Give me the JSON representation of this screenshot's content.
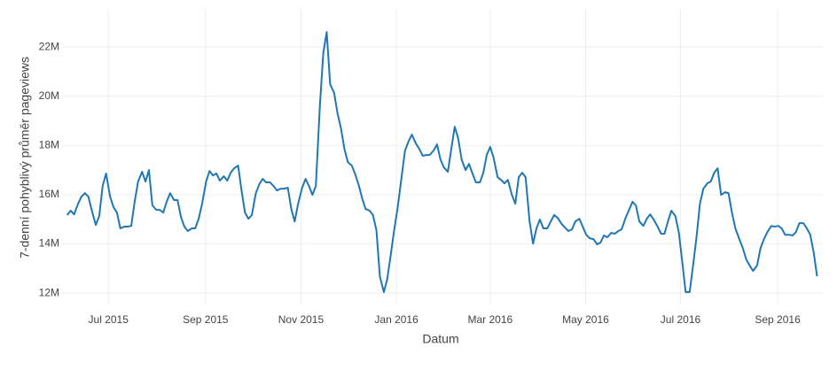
{
  "chart_data": {
    "type": "line",
    "x_label": "Datum",
    "y_label": "7-denní pohyblivý průměr pageviews",
    "color": "#1f77b4",
    "grid": true,
    "xlim": [
      2015.415,
      2016.746
    ],
    "xticks": [
      {
        "value": 2015.496,
        "label": "Jul 2015"
      },
      {
        "value": 2015.666,
        "label": "Sep 2015"
      },
      {
        "value": 2015.833,
        "label": "Nov 2015"
      },
      {
        "value": 2016,
        "label": "Jan 2016"
      },
      {
        "value": 2016.164,
        "label": "Mar 2016"
      },
      {
        "value": 2016.331,
        "label": "May 2016"
      },
      {
        "value": 2016.497,
        "label": "Jul 2016"
      },
      {
        "value": 2016.667,
        "label": "Sep 2016"
      }
    ],
    "ylim": [
      11500000,
      23550000
    ],
    "yticks": [
      {
        "value": 12000000,
        "label": "12M"
      },
      {
        "value": 14000000,
        "label": "14M"
      },
      {
        "value": 16000000,
        "label": "16M"
      },
      {
        "value": 18000000,
        "label": "18M"
      },
      {
        "value": 20000000,
        "label": "20M"
      },
      {
        "value": 22000000,
        "label": "22M"
      }
    ],
    "x": [
      2015.424,
      2015.43,
      2015.436,
      2015.443,
      2015.449,
      2015.455,
      2015.461,
      2015.468,
      2015.474,
      2015.48,
      2015.486,
      2015.492,
      2015.499,
      2015.505,
      2015.511,
      2015.517,
      2015.524,
      2015.53,
      2015.536,
      2015.542,
      2015.548,
      2015.555,
      2015.561,
      2015.567,
      2015.573,
      2015.58,
      2015.586,
      2015.592,
      2015.598,
      2015.604,
      2015.611,
      2015.617,
      2015.623,
      2015.629,
      2015.635,
      2015.642,
      2015.648,
      2015.654,
      2015.66,
      2015.667,
      2015.673,
      2015.679,
      2015.685,
      2015.691,
      2015.698,
      2015.704,
      2015.71,
      2015.716,
      2015.723,
      2015.729,
      2015.735,
      2015.741,
      2015.747,
      2015.754,
      2015.76,
      2015.766,
      2015.772,
      2015.779,
      2015.785,
      2015.791,
      2015.797,
      2015.803,
      2015.81,
      2015.816,
      2015.822,
      2015.828,
      2015.835,
      2015.841,
      2015.847,
      2015.853,
      2015.859,
      2015.866,
      2015.872,
      2015.878,
      2015.884,
      2015.891,
      2015.897,
      2015.903,
      2015.909,
      2015.915,
      2015.922,
      2015.928,
      2015.934,
      2015.94,
      2015.946,
      2015.953,
      2015.959,
      2015.965,
      2015.971,
      2015.978,
      2015.984,
      2015.99,
      2015.996,
      2016.002,
      2016.009,
      2016.015,
      2016.021,
      2016.027,
      2016.034,
      2016.04,
      2016.046,
      2016.052,
      2016.058,
      2016.065,
      2016.071,
      2016.077,
      2016.083,
      2016.09,
      2016.096,
      2016.102,
      2016.108,
      2016.114,
      2016.121,
      2016.127,
      2016.133,
      2016.139,
      2016.146,
      2016.152,
      2016.158,
      2016.164,
      2016.17,
      2016.177,
      2016.183,
      2016.189,
      2016.195,
      2016.202,
      2016.208,
      2016.214,
      2016.22,
      2016.226,
      2016.233,
      2016.239,
      2016.245,
      2016.251,
      2016.257,
      2016.264,
      2016.27,
      2016.276,
      2016.282,
      2016.289,
      2016.295,
      2016.301,
      2016.307,
      2016.313,
      2016.32,
      2016.326,
      2016.332,
      2016.338,
      2016.345,
      2016.351,
      2016.357,
      2016.363,
      2016.369,
      2016.376,
      2016.382,
      2016.388,
      2016.394,
      2016.401,
      2016.407,
      2016.413,
      2016.419,
      2016.425,
      2016.432,
      2016.438,
      2016.444,
      2016.45,
      2016.457,
      2016.463,
      2016.469,
      2016.475,
      2016.481,
      2016.488,
      2016.494,
      2016.5,
      2016.506,
      2016.513,
      2016.519,
      2016.525,
      2016.531,
      2016.537,
      2016.544,
      2016.55,
      2016.556,
      2016.562,
      2016.568,
      2016.575,
      2016.581,
      2016.587,
      2016.593,
      2016.6,
      2016.606,
      2016.612,
      2016.618,
      2016.624,
      2016.631,
      2016.637,
      2016.643,
      2016.649,
      2016.656,
      2016.662,
      2016.668,
      2016.674,
      2016.68,
      2016.687,
      2016.693,
      2016.699,
      2016.705,
      2016.712,
      2016.718,
      2016.724,
      2016.73,
      2016.736
    ],
    "values": [
      15170000,
      15350000,
      15200000,
      15630000,
      15920000,
      16060000,
      15920000,
      15270000,
      14770000,
      15130000,
      16350000,
      16860000,
      15920000,
      15490000,
      15270000,
      14630000,
      14700000,
      14700000,
      14730000,
      15710000,
      16530000,
      16930000,
      16530000,
      17000000,
      15560000,
      15380000,
      15380000,
      15270000,
      15710000,
      16060000,
      15780000,
      15780000,
      15090000,
      14700000,
      14520000,
      14630000,
      14630000,
      15020000,
      15630000,
      16530000,
      16960000,
      16780000,
      16860000,
      16570000,
      16750000,
      16570000,
      16890000,
      17070000,
      17180000,
      16170000,
      15270000,
      15020000,
      15170000,
      16060000,
      16420000,
      16640000,
      16500000,
      16500000,
      16350000,
      16170000,
      16240000,
      16240000,
      16280000,
      15420000,
      14910000,
      15630000,
      16280000,
      16640000,
      16350000,
      15990000,
      16350000,
      19590000,
      21750000,
      22610000,
      20490000,
      20130000,
      19300000,
      18690000,
      17860000,
      17320000,
      17180000,
      16820000,
      16390000,
      15850000,
      15420000,
      15350000,
      15170000,
      14550000,
      12680000,
      12040000,
      12580000,
      13550000,
      14550000,
      15450000,
      16710000,
      17790000,
      18150000,
      18440000,
      18080000,
      17860000,
      17580000,
      17610000,
      17610000,
      17790000,
      18040000,
      17430000,
      17110000,
      16930000,
      17860000,
      18760000,
      18290000,
      17430000,
      17000000,
      17250000,
      16860000,
      16500000,
      16500000,
      16890000,
      17610000,
      17940000,
      17500000,
      16710000,
      16600000,
      16460000,
      16600000,
      15990000,
      15630000,
      16710000,
      16890000,
      16710000,
      14910000,
      14010000,
      14630000,
      14990000,
      14630000,
      14630000,
      14910000,
      15170000,
      15060000,
      14810000,
      14660000,
      14520000,
      14590000,
      14910000,
      15020000,
      14700000,
      14370000,
      14230000,
      14190000,
      13980000,
      14050000,
      14340000,
      14270000,
      14450000,
      14410000,
      14520000,
      14590000,
      15060000,
      15380000,
      15710000,
      15560000,
      14910000,
      14730000,
      15020000,
      15200000,
      14990000,
      14700000,
      14410000,
      14410000,
      14910000,
      15350000,
      15130000,
      14480000,
      13290000,
      12040000,
      12040000,
      13120000,
      14270000,
      15630000,
      16240000,
      16460000,
      16530000,
      16890000,
      17070000,
      15990000,
      16100000,
      16060000,
      15270000,
      14630000,
      14190000,
      13830000,
      13370000,
      13120000,
      12900000,
      13120000,
      13830000,
      14190000,
      14480000,
      14730000,
      14700000,
      14730000,
      14630000,
      14370000,
      14370000,
      14340000,
      14480000,
      14840000,
      14840000,
      14630000,
      14370000,
      13650000,
      12680000
    ]
  }
}
